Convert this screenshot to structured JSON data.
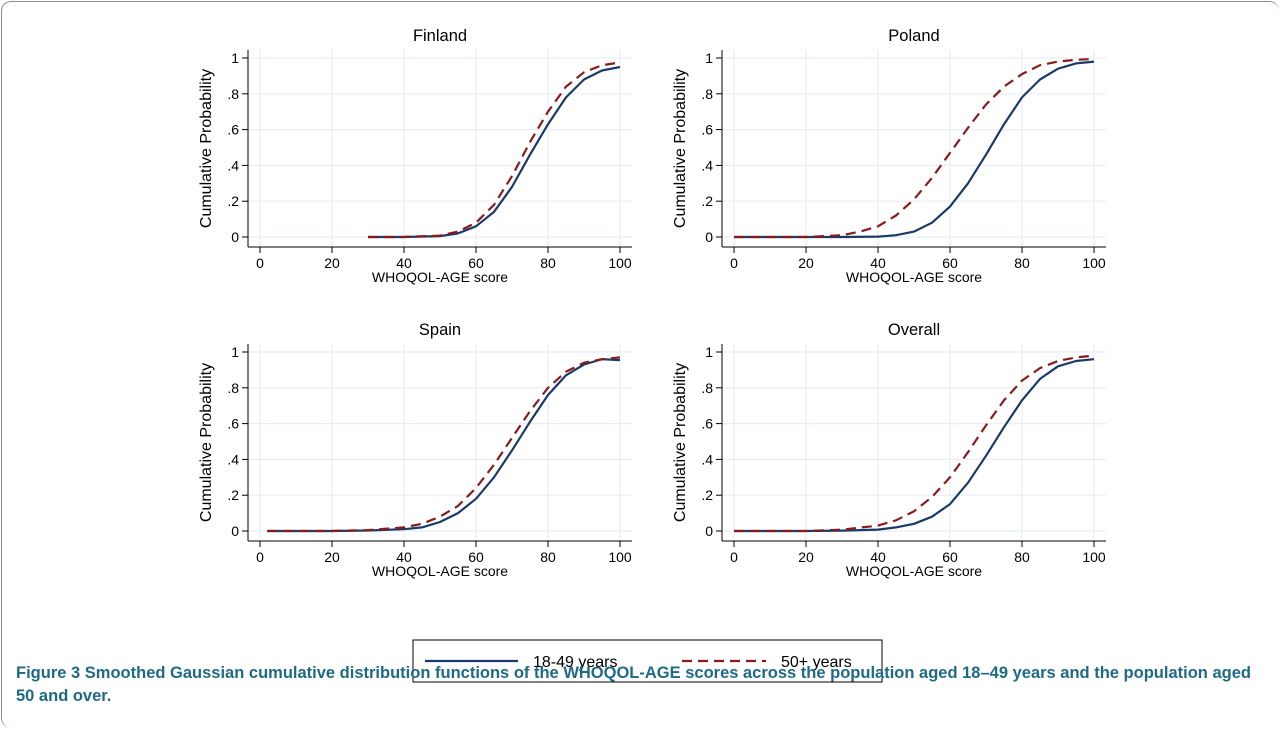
{
  "chart_data": [
    {
      "type": "line",
      "title": "Finland",
      "xlabel": "WHOQOL-AGE score",
      "ylabel": "Cumulative Probability",
      "xlim": [
        0,
        100
      ],
      "ylim": [
        0,
        1
      ],
      "xticks": [
        "0",
        "20",
        "40",
        "60",
        "80",
        "100"
      ],
      "yticks": [
        "0",
        ".2",
        ".4",
        ".6",
        ".8",
        "1"
      ],
      "grid": true,
      "series": [
        {
          "name": "18-49 years",
          "x": [
            30,
            40,
            50,
            55,
            60,
            65,
            70,
            75,
            80,
            85,
            90,
            95,
            100
          ],
          "y": [
            0.0,
            0.0,
            0.005,
            0.02,
            0.06,
            0.14,
            0.28,
            0.46,
            0.63,
            0.78,
            0.88,
            0.93,
            0.95
          ]
        },
        {
          "name": "50+ years",
          "x": [
            30,
            40,
            50,
            55,
            60,
            65,
            70,
            75,
            80,
            85,
            90,
            95,
            100
          ],
          "y": [
            0.0,
            0.0,
            0.008,
            0.03,
            0.08,
            0.18,
            0.34,
            0.53,
            0.7,
            0.84,
            0.92,
            0.96,
            0.975
          ]
        }
      ]
    },
    {
      "type": "line",
      "title": "Poland",
      "xlabel": "WHOQOL-AGE score",
      "ylabel": "Cumulative Probability",
      "xlim": [
        0,
        100
      ],
      "ylim": [
        0,
        1
      ],
      "xticks": [
        "0",
        "20",
        "40",
        "60",
        "80",
        "100"
      ],
      "yticks": [
        "0",
        ".2",
        ".4",
        ".6",
        ".8",
        "1"
      ],
      "grid": true,
      "series": [
        {
          "name": "18-49 years",
          "x": [
            0,
            20,
            30,
            40,
            45,
            50,
            55,
            60,
            65,
            70,
            75,
            80,
            85,
            90,
            95,
            100
          ],
          "y": [
            0.0,
            0.0,
            0.0,
            0.002,
            0.01,
            0.03,
            0.08,
            0.17,
            0.3,
            0.46,
            0.63,
            0.78,
            0.88,
            0.94,
            0.97,
            0.98
          ]
        },
        {
          "name": "50+ years",
          "x": [
            0,
            20,
            30,
            35,
            40,
            45,
            50,
            55,
            60,
            65,
            70,
            75,
            80,
            85,
            90,
            95,
            100
          ],
          "y": [
            0.0,
            0.0,
            0.01,
            0.03,
            0.06,
            0.12,
            0.21,
            0.33,
            0.47,
            0.61,
            0.74,
            0.84,
            0.91,
            0.96,
            0.98,
            0.99,
            0.995
          ]
        }
      ]
    },
    {
      "type": "line",
      "title": "Spain",
      "xlabel": "WHOQOL-AGE score",
      "ylabel": "Cumulative Probability",
      "xlim": [
        0,
        100
      ],
      "ylim": [
        0,
        1
      ],
      "xticks": [
        "0",
        "20",
        "40",
        "60",
        "80",
        "100"
      ],
      "yticks": [
        "0",
        ".2",
        ".4",
        ".6",
        ".8",
        "1"
      ],
      "grid": true,
      "series": [
        {
          "name": "18-49 years",
          "x": [
            2,
            20,
            30,
            40,
            45,
            50,
            55,
            60,
            65,
            70,
            75,
            80,
            85,
            90,
            95,
            100
          ],
          "y": [
            0.0,
            0.0,
            0.003,
            0.01,
            0.02,
            0.05,
            0.1,
            0.18,
            0.3,
            0.45,
            0.61,
            0.76,
            0.87,
            0.93,
            0.96,
            0.955
          ]
        },
        {
          "name": "50+ years",
          "x": [
            2,
            20,
            30,
            40,
            45,
            50,
            55,
            60,
            65,
            70,
            75,
            80,
            85,
            90,
            95,
            100
          ],
          "y": [
            0.0,
            0.0,
            0.005,
            0.02,
            0.04,
            0.08,
            0.14,
            0.24,
            0.37,
            0.52,
            0.67,
            0.8,
            0.89,
            0.94,
            0.96,
            0.97
          ]
        }
      ]
    },
    {
      "type": "line",
      "title": "Overall",
      "xlabel": "WHOQOL-AGE score",
      "ylabel": "Cumulative Probability",
      "xlim": [
        0,
        100
      ],
      "ylim": [
        0,
        1
      ],
      "xticks": [
        "0",
        "20",
        "40",
        "60",
        "80",
        "100"
      ],
      "yticks": [
        "0",
        ".2",
        ".4",
        ".6",
        ".8",
        "1"
      ],
      "grid": true,
      "series": [
        {
          "name": "18-49 years",
          "x": [
            0,
            20,
            30,
            40,
            45,
            50,
            55,
            60,
            65,
            70,
            75,
            80,
            85,
            90,
            95,
            100
          ],
          "y": [
            0.0,
            0.0,
            0.002,
            0.008,
            0.02,
            0.04,
            0.08,
            0.15,
            0.27,
            0.42,
            0.58,
            0.73,
            0.85,
            0.92,
            0.95,
            0.96
          ]
        },
        {
          "name": "50+ years",
          "x": [
            0,
            20,
            30,
            40,
            45,
            50,
            55,
            60,
            65,
            70,
            75,
            80,
            85,
            90,
            95,
            100
          ],
          "y": [
            0.0,
            0.0,
            0.008,
            0.03,
            0.06,
            0.11,
            0.19,
            0.3,
            0.44,
            0.59,
            0.73,
            0.84,
            0.91,
            0.95,
            0.97,
            0.98
          ]
        }
      ]
    }
  ],
  "legend": {
    "placement": "bottom-center",
    "items": [
      {
        "label": "18-49 years",
        "color": "#1a3a6b",
        "dash": "solid"
      },
      {
        "label": "50+ years",
        "color": "#8b1a1a",
        "dash": "dashed"
      }
    ]
  },
  "colors": {
    "series_1": "#1a3a6b",
    "series_2": "#8b1a1a",
    "grid": "#e8eef3",
    "caption": "#1e6a86"
  },
  "caption": {
    "label": "Figure 3",
    "text": "Smoothed Gaussian cumulative distribution functions of the WHOQOL-AGE scores across the population aged 18–49 years and the population aged 50 and over."
  }
}
